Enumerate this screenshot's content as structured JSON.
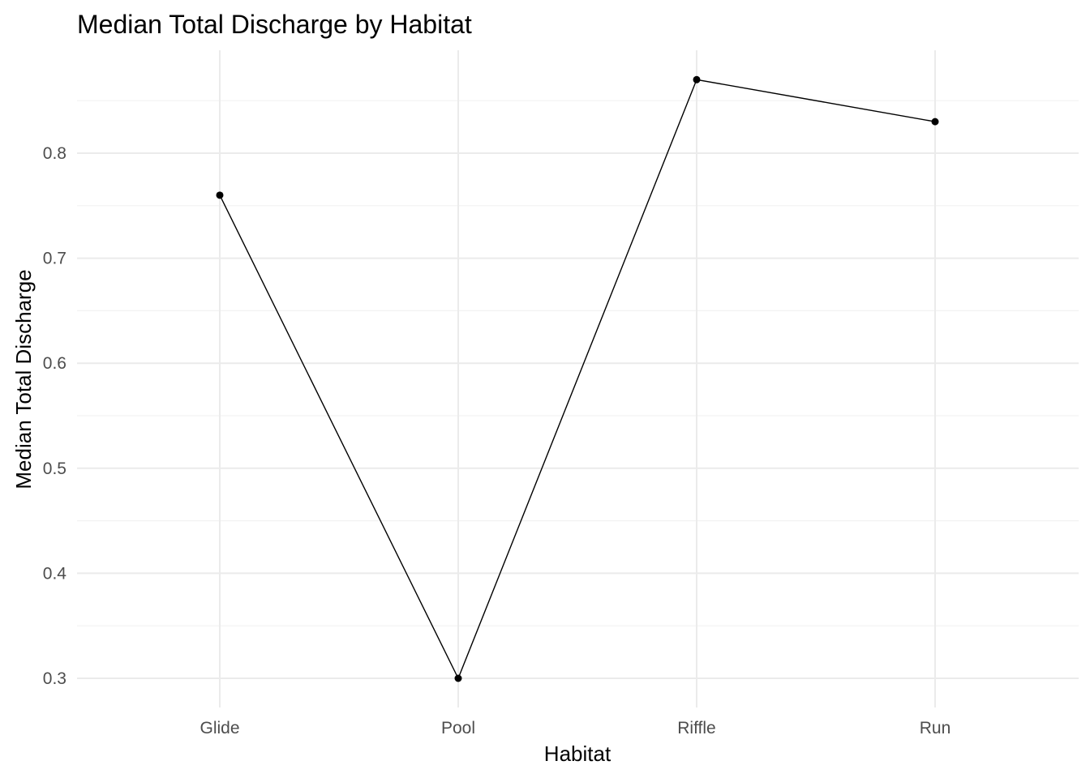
{
  "chart_data": {
    "type": "line",
    "title": "Median Total Discharge by Habitat",
    "xlabel": "Habitat",
    "ylabel": "Median Total Discharge",
    "categories": [
      "Glide",
      "Pool",
      "Riffle",
      "Run"
    ],
    "series": [
      {
        "values": [
          0.76,
          0.3,
          0.87,
          0.83
        ]
      }
    ],
    "yticks": [
      0.3,
      0.4,
      0.5,
      0.6,
      0.7,
      0.8
    ],
    "ytick_labels": [
      "0.3",
      "0.4",
      "0.5",
      "0.6",
      "0.7",
      "0.8"
    ],
    "ylim": [
      0.273,
      0.897
    ],
    "grid": true,
    "legend": "none",
    "colors": {
      "line": "#000000",
      "point": "#000000",
      "grid": "#ebebeb",
      "background": "#ffffff"
    }
  }
}
